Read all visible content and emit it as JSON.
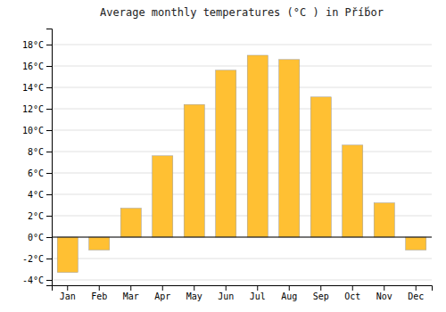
{
  "chart_data": {
    "type": "bar",
    "title": "Average monthly temperatures (°C ) in Pří́bor",
    "categories": [
      "Jan",
      "Feb",
      "Mar",
      "Apr",
      "May",
      "Jun",
      "Jul",
      "Aug",
      "Sep",
      "Oct",
      "Nov",
      "Dec"
    ],
    "values": [
      -3.3,
      -1.2,
      2.7,
      7.6,
      12.4,
      15.6,
      17.0,
      16.6,
      13.1,
      8.6,
      3.2,
      -1.2
    ],
    "color": "#FFC033",
    "ylim": [
      -4.5,
      19.5
    ],
    "yticks": [
      {
        "value": -4,
        "label": "-4°C"
      },
      {
        "value": -2,
        "label": "-2°C"
      },
      {
        "value": 0,
        "label": "0°C"
      },
      {
        "value": 2,
        "label": "2°C"
      },
      {
        "value": 4,
        "label": "4°C"
      },
      {
        "value": 6,
        "label": "6°C"
      },
      {
        "value": 8,
        "label": "8°C"
      },
      {
        "value": 10,
        "label": "10°C"
      },
      {
        "value": 12,
        "label": "12°C"
      },
      {
        "value": 14,
        "label": "14°C"
      },
      {
        "value": 16,
        "label": "16°C"
      },
      {
        "value": 18,
        "label": "18°C"
      }
    ],
    "grid": true
  }
}
